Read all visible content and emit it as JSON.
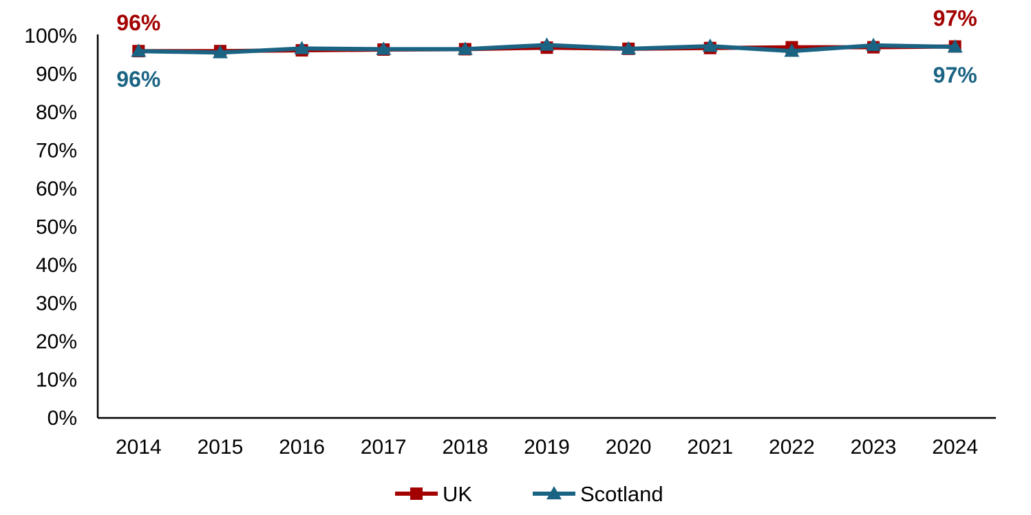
{
  "chart_data": {
    "type": "line",
    "x": [
      "2014",
      "2015",
      "2016",
      "2017",
      "2018",
      "2019",
      "2020",
      "2021",
      "2022",
      "2023",
      "2024"
    ],
    "ylim": [
      0,
      100
    ],
    "y_ticks": [
      "0%",
      "10%",
      "20%",
      "30%",
      "40%",
      "50%",
      "60%",
      "70%",
      "80%",
      "90%",
      "100%"
    ],
    "grid": false,
    "legend_position": "bottom",
    "series": [
      {
        "name": "UK",
        "color": "#A30000",
        "marker": "square",
        "values": [
          96.0,
          96.0,
          96.2,
          96.4,
          96.5,
          96.9,
          96.6,
          96.8,
          97.0,
          97.0,
          97.2
        ],
        "labels": [
          {
            "index": 0,
            "text": "96%"
          },
          {
            "index": 10,
            "text": "97%"
          }
        ]
      },
      {
        "name": "Scotland",
        "color": "#1A6383",
        "marker": "triangle",
        "values": [
          96.0,
          95.6,
          96.7,
          96.5,
          96.5,
          97.6,
          96.6,
          97.3,
          96.0,
          97.5,
          97.1
        ],
        "labels": [
          {
            "index": 0,
            "text": "96%"
          },
          {
            "index": 10,
            "text": "97%"
          }
        ]
      }
    ]
  }
}
